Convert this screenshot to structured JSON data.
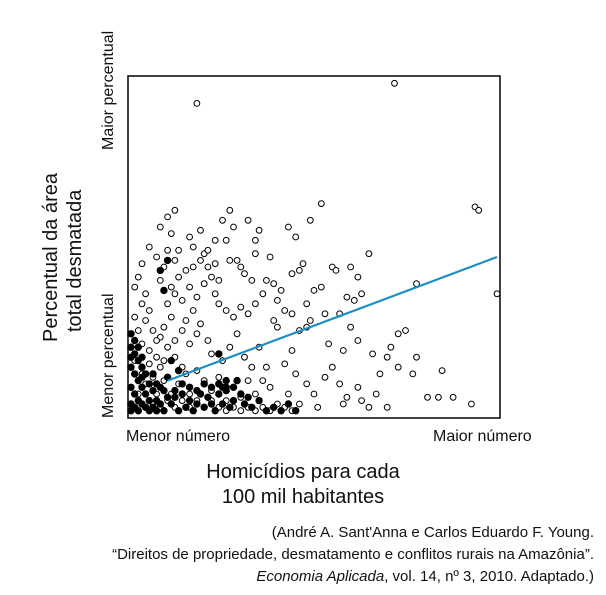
{
  "chart_data": {
    "type": "scatter",
    "title": "",
    "xlabel_lines": [
      "Homicídios para cada",
      "100 mil habitantes"
    ],
    "ylabel_lines": [
      "Percentual da área",
      "total desmatada"
    ],
    "x_ticks": [
      "Menor número",
      "Maior número"
    ],
    "y_ticks": [
      "Menor percentual",
      "Maior percentual"
    ],
    "xlim": [
      0,
      100
    ],
    "ylim": [
      0,
      100
    ],
    "grid": false,
    "trend_line": {
      "color": "#1f8fbf",
      "from": [
        10,
        10
      ],
      "to": [
        100,
        47
      ]
    },
    "series": [
      {
        "style": "open",
        "points": [
          [
            18,
            93
          ],
          [
            72,
            99
          ],
          [
            94,
            62
          ],
          [
            95,
            61
          ],
          [
            100,
            36
          ],
          [
            28,
            56
          ],
          [
            32,
            58
          ],
          [
            52,
            63
          ],
          [
            35,
            55
          ],
          [
            43,
            56
          ],
          [
            45,
            53
          ],
          [
            34,
            52
          ],
          [
            49,
            58
          ],
          [
            34,
            48
          ],
          [
            47,
            45
          ],
          [
            38,
            47
          ],
          [
            26,
            52
          ],
          [
            16,
            53
          ],
          [
            17,
            50
          ],
          [
            20,
            48
          ],
          [
            21,
            44
          ],
          [
            23,
            45
          ],
          [
            27,
            46
          ],
          [
            29,
            46
          ],
          [
            30,
            44
          ],
          [
            22,
            41
          ],
          [
            24,
            40
          ],
          [
            31,
            42
          ],
          [
            33,
            40
          ],
          [
            37,
            40
          ],
          [
            44,
            42
          ],
          [
            46,
            43
          ],
          [
            55,
            44
          ],
          [
            56,
            43
          ],
          [
            60,
            44
          ],
          [
            65,
            48
          ],
          [
            62,
            41
          ],
          [
            78,
            39
          ],
          [
            63,
            36
          ],
          [
            61,
            34
          ],
          [
            52,
            38
          ],
          [
            53,
            30
          ],
          [
            49,
            28
          ],
          [
            48,
            26
          ],
          [
            54,
            21
          ],
          [
            58,
            19
          ],
          [
            66,
            18
          ],
          [
            70,
            17
          ],
          [
            73,
            24
          ],
          [
            75,
            25
          ],
          [
            78,
            17
          ],
          [
            77,
            12
          ],
          [
            85,
            13
          ],
          [
            84,
            5
          ],
          [
            81,
            5
          ],
          [
            88,
            5
          ],
          [
            93,
            3
          ],
          [
            70,
            2
          ],
          [
            63,
            4
          ],
          [
            58,
            3
          ],
          [
            48,
            9
          ],
          [
            45,
            12
          ],
          [
            43,
            6
          ],
          [
            42,
            15
          ],
          [
            44,
            19
          ],
          [
            40,
            26
          ],
          [
            39,
            28
          ],
          [
            40,
            34
          ],
          [
            41,
            37
          ],
          [
            39,
            39
          ],
          [
            36,
            36
          ],
          [
            34,
            33
          ],
          [
            32,
            30
          ],
          [
            30,
            32
          ],
          [
            28,
            29
          ],
          [
            26,
            31
          ],
          [
            24,
            33
          ],
          [
            23,
            36
          ],
          [
            20,
            39
          ],
          [
            18,
            35
          ],
          [
            17,
            31
          ],
          [
            15,
            28
          ],
          [
            14,
            34
          ],
          [
            12,
            36
          ],
          [
            11,
            38
          ],
          [
            13,
            41
          ],
          [
            15,
            43
          ],
          [
            12,
            46
          ],
          [
            10,
            49
          ],
          [
            9,
            44
          ],
          [
            8,
            40
          ],
          [
            10,
            33
          ],
          [
            11,
            29
          ],
          [
            9,
            26
          ],
          [
            8,
            23
          ],
          [
            10,
            20
          ],
          [
            12,
            17
          ],
          [
            14,
            14
          ],
          [
            16,
            21
          ],
          [
            18,
            24
          ],
          [
            19,
            27
          ],
          [
            21,
            22
          ],
          [
            22,
            18
          ],
          [
            25,
            16
          ],
          [
            27,
            20
          ],
          [
            29,
            24
          ],
          [
            31,
            17
          ],
          [
            33,
            14
          ],
          [
            35,
            20
          ],
          [
            36,
            10
          ],
          [
            38,
            8
          ],
          [
            37,
            14
          ],
          [
            34,
            6
          ],
          [
            32,
            10
          ],
          [
            30,
            5
          ],
          [
            28,
            8
          ],
          [
            26,
            4
          ],
          [
            24,
            11
          ],
          [
            22,
            7
          ],
          [
            20,
            10
          ],
          [
            18,
            13
          ],
          [
            16,
            6
          ],
          [
            15,
            12
          ],
          [
            13,
            9
          ],
          [
            11,
            6
          ],
          [
            9,
            10
          ],
          [
            8,
            14
          ],
          [
            7,
            6
          ],
          [
            7,
            17
          ],
          [
            6,
            11
          ],
          [
            5,
            19
          ],
          [
            6,
            25
          ],
          [
            5,
            31
          ],
          [
            4,
            28
          ],
          [
            3,
            33
          ],
          [
            4,
            36
          ],
          [
            2,
            41
          ],
          [
            1,
            38
          ],
          [
            3,
            45
          ],
          [
            5,
            50
          ],
          [
            7,
            47
          ],
          [
            8,
            56
          ],
          [
            10,
            59
          ],
          [
            12,
            61
          ],
          [
            11,
            54
          ],
          [
            13,
            49
          ],
          [
            17,
            44
          ],
          [
            19,
            46
          ],
          [
            21,
            49
          ],
          [
            23,
            52
          ],
          [
            25,
            58
          ],
          [
            27,
            61
          ],
          [
            19,
            55
          ],
          [
            16,
            38
          ],
          [
            14,
            25
          ],
          [
            12,
            22
          ],
          [
            9,
            16
          ],
          [
            7,
            22
          ],
          [
            5,
            15
          ],
          [
            3,
            21
          ],
          [
            2,
            25
          ],
          [
            1,
            29
          ],
          [
            3,
            12
          ],
          [
            1,
            16
          ],
          [
            2,
            6
          ],
          [
            4,
            9
          ],
          [
            6,
            3
          ],
          [
            8,
            2
          ],
          [
            10,
            4
          ],
          [
            12,
            2
          ],
          [
            14,
            4
          ],
          [
            16,
            2
          ],
          [
            18,
            4
          ],
          [
            20,
            2
          ],
          [
            22,
            4
          ],
          [
            24,
            2
          ],
          [
            26,
            1
          ],
          [
            28,
            2
          ],
          [
            30,
            1
          ],
          [
            32,
            2
          ],
          [
            34,
            1
          ],
          [
            36,
            2
          ],
          [
            38,
            1
          ],
          [
            40,
            3
          ],
          [
            42,
            2
          ],
          [
            44,
            1
          ],
          [
            46,
            3
          ],
          [
            50,
            6
          ],
          [
            51,
            2
          ],
          [
            53,
            11
          ],
          [
            55,
            14
          ],
          [
            57,
            9
          ],
          [
            59,
            5
          ],
          [
            62,
            8
          ],
          [
            65,
            2
          ],
          [
            67,
            6
          ],
          [
            68,
            12
          ],
          [
            71,
            20
          ],
          [
            73,
            14
          ],
          [
            42,
            31
          ],
          [
            44,
            30
          ],
          [
            46,
            25
          ],
          [
            48,
            33
          ],
          [
            50,
            37
          ],
          [
            57,
            30
          ],
          [
            59,
            35
          ],
          [
            60,
            26
          ],
          [
            62,
            22
          ]
        ]
      },
      {
        "style": "filled",
        "points": [
          [
            0,
            20
          ],
          [
            1,
            18
          ],
          [
            2,
            16
          ],
          [
            0,
            14
          ],
          [
            1,
            12
          ],
          [
            2,
            10
          ],
          [
            3,
            8
          ],
          [
            0,
            8
          ],
          [
            1,
            6
          ],
          [
            2,
            4
          ],
          [
            3,
            3
          ],
          [
            0,
            3
          ],
          [
            1,
            2
          ],
          [
            2,
            1
          ],
          [
            0,
            1
          ],
          [
            4,
            6
          ],
          [
            5,
            4
          ],
          [
            4,
            2
          ],
          [
            5,
            1
          ],
          [
            6,
            7
          ],
          [
            7,
            4
          ],
          [
            6,
            2
          ],
          [
            7,
            1
          ],
          [
            8,
            3
          ],
          [
            9,
            1
          ],
          [
            10,
            5
          ],
          [
            11,
            3
          ],
          [
            12,
            7
          ],
          [
            13,
            1
          ],
          [
            14,
            6
          ],
          [
            15,
            2
          ],
          [
            16,
            4
          ],
          [
            17,
            1
          ],
          [
            18,
            3
          ],
          [
            19,
            6
          ],
          [
            20,
            2
          ],
          [
            21,
            5
          ],
          [
            22,
            3
          ],
          [
            23,
            1
          ],
          [
            24,
            6
          ],
          [
            25,
            3
          ],
          [
            26,
            8
          ],
          [
            27,
            2
          ],
          [
            28,
            4
          ],
          [
            29,
            10
          ],
          [
            30,
            6
          ],
          [
            31,
            3
          ],
          [
            32,
            5
          ],
          [
            33,
            2
          ],
          [
            35,
            4
          ],
          [
            37,
            1
          ],
          [
            39,
            2
          ],
          [
            41,
            1
          ],
          [
            43,
            3
          ],
          [
            45,
            1
          ],
          [
            0,
            24
          ],
          [
            1,
            22
          ],
          [
            0,
            17
          ],
          [
            2,
            20
          ],
          [
            3,
            17
          ],
          [
            3,
            14
          ],
          [
            4,
            12
          ],
          [
            3,
            11
          ],
          [
            5,
            9
          ],
          [
            6,
            12
          ],
          [
            7,
            9
          ],
          [
            8,
            8
          ],
          [
            9,
            7
          ],
          [
            10,
            11
          ],
          [
            12,
            5
          ],
          [
            14,
            9
          ],
          [
            16,
            8
          ],
          [
            18,
            7
          ],
          [
            20,
            9
          ],
          [
            22,
            8
          ],
          [
            24,
            9
          ],
          [
            26,
            7
          ],
          [
            28,
            8
          ],
          [
            9,
            37
          ],
          [
            8,
            43
          ],
          [
            10,
            46
          ],
          [
            24,
            18
          ],
          [
            26,
            10
          ],
          [
            25,
            8
          ],
          [
            11,
            16
          ],
          [
            13,
            13
          ]
        ]
      }
    ]
  },
  "source": {
    "line1": "(André A. Sant'Anna e Carlos Eduardo F. Young.",
    "line2": "“Direitos de propriedade, desmatamento e conflitos rurais na Amazônia”.",
    "line3_italic": "Economia Aplicada",
    "line3_rest": ", vol. 14, nº 3, 2010. Adaptado.)"
  }
}
